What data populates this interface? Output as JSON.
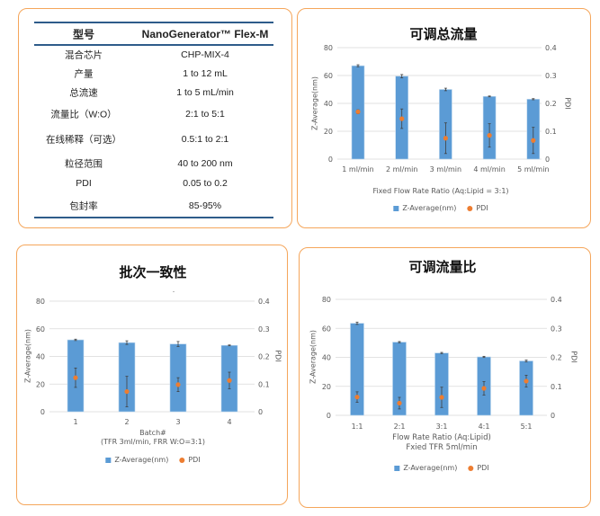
{
  "spec_table": {
    "header": [
      "型号",
      "NanoGenerator™ Flex-M"
    ],
    "rows": [
      [
        "混合芯片",
        "CHP-MIX-4"
      ],
      [
        "产量",
        "1 to 12 mL"
      ],
      [
        "总流速",
        "1 to 5 mL/min"
      ],
      [
        "流量比（W:O）",
        "2:1 to 5:1"
      ],
      [
        "在线稀释（可选）",
        "0.5:1 to 2:1"
      ],
      [
        "粒径范围",
        "40 to 200 nm"
      ],
      [
        "PDI",
        "0.05 to 0.2"
      ],
      [
        "包封率",
        "85-95%"
      ]
    ],
    "accent": "#2e5c8a"
  },
  "colors": {
    "bar": "#5b9bd5",
    "pdi": "#ed7d31",
    "panel_border": "#f5a65b"
  },
  "chart_data": [
    {
      "type": "bar",
      "title": "可调总流量",
      "categories": [
        "1 ml/min",
        "2 ml/min",
        "3 ml/min",
        "4 ml/min",
        "5 ml/min"
      ],
      "xlabel": [
        "Fixed Flow Rate Ratio (Aq:Lipid = 3:1)"
      ],
      "ylabel": "Z-Average(nm)",
      "y2label": "PDI",
      "ylim": [
        0,
        80
      ],
      "yticks": [
        "0",
        "20",
        "40",
        "60",
        "80"
      ],
      "y2lim": [
        0,
        0.4
      ],
      "y2ticks": [
        "0",
        "0.1",
        "0.2",
        "0.3",
        "0.4"
      ],
      "grid": true,
      "legend": "bottom",
      "series": [
        {
          "name": "Z-Average(nm)",
          "kind": "bar",
          "values": [
            67,
            59.5,
            50,
            45,
            43
          ],
          "errors": [
            0.7,
            1.2,
            0.9,
            0.3,
            0.4
          ]
        },
        {
          "name": "PDI",
          "kind": "scatter",
          "axis": "right",
          "values": [
            0.17,
            0.145,
            0.075,
            0.085,
            0.067
          ],
          "errors": [
            0.007,
            0.035,
            0.055,
            0.042,
            0.047
          ]
        }
      ]
    },
    {
      "type": "bar",
      "title": "批次一致性",
      "note": ".",
      "categories": [
        "1",
        "2",
        "3",
        "4"
      ],
      "xlabel": [
        "Batch#",
        "(TFR 3ml/min, FRR W:O=3:1)"
      ],
      "ylabel": "Z-Average(nm)",
      "y2label": "PDI",
      "ylim": [
        0,
        80
      ],
      "yticks": [
        "0",
        "20",
        "40",
        "60",
        "80"
      ],
      "y2lim": [
        0,
        0.4
      ],
      "y2ticks": [
        "0",
        "0.1",
        "0.2",
        "0.3",
        "0.4"
      ],
      "grid": true,
      "legend": "bottom",
      "series": [
        {
          "name": "Z-Average(nm)",
          "kind": "bar",
          "values": [
            52,
            50,
            49,
            48
          ],
          "errors": [
            0.5,
            1.3,
            1.8,
            0.3
          ]
        },
        {
          "name": "PDI",
          "kind": "scatter",
          "axis": "right",
          "values": [
            0.123,
            0.073,
            0.098,
            0.113
          ],
          "errors": [
            0.035,
            0.055,
            0.025,
            0.03
          ]
        }
      ]
    },
    {
      "type": "bar",
      "title": "可调流量比",
      "categories": [
        "1:1",
        "2:1",
        "3:1",
        "4:1",
        "5:1"
      ],
      "xlabel": [
        "Flow Rate Ratio (Aq:Lipid)",
        "Fxied TFR 5ml/min"
      ],
      "ylabel": "Z-Average(nm)",
      "y2label": "PDI",
      "ylim": [
        0,
        80
      ],
      "yticks": [
        "0",
        "20",
        "40",
        "60",
        "80"
      ],
      "y2lim": [
        0,
        0.4
      ],
      "y2ticks": [
        "0",
        "0.1",
        "0.2",
        "0.3",
        "0.4"
      ],
      "grid": true,
      "legend": "bottom",
      "series": [
        {
          "name": "Z-Average(nm)",
          "kind": "bar",
          "values": [
            63.5,
            50.5,
            43,
            40.3,
            37.5
          ],
          "errors": [
            0.8,
            0.4,
            0.4,
            0.4,
            0.6
          ]
        },
        {
          "name": "PDI",
          "kind": "scatter",
          "axis": "right",
          "values": [
            0.063,
            0.042,
            0.062,
            0.093,
            0.118
          ],
          "errors": [
            0.018,
            0.02,
            0.035,
            0.023,
            0.02
          ]
        }
      ]
    }
  ]
}
